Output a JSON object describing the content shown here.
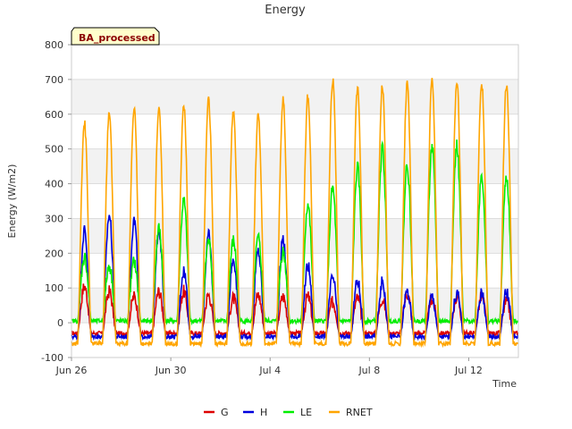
{
  "chart_data": {
    "type": "line",
    "title": "Energy",
    "xlabel": "Time",
    "ylabel": "Energy (W/m2)",
    "badge": "BA_processed",
    "ylim": [
      -100,
      800
    ],
    "yticks": [
      -100,
      0,
      100,
      200,
      300,
      400,
      500,
      600,
      700,
      800
    ],
    "xlim": [
      "2023-06-26",
      "2023-07-14"
    ],
    "xticks": [
      {
        "date": "2023-06-26",
        "label": "Jun 26"
      },
      {
        "date": "2023-06-30",
        "label": "Jun 30"
      },
      {
        "date": "2023-07-04",
        "label": "Jul 4"
      },
      {
        "date": "2023-07-08",
        "label": "Jul 8"
      },
      {
        "date": "2023-07-12",
        "label": "Jul 12"
      }
    ],
    "series_dates": [
      "2023-06-26",
      "2023-06-27",
      "2023-06-28",
      "2023-06-29",
      "2023-06-30",
      "2023-07-01",
      "2023-07-02",
      "2023-07-03",
      "2023-07-04",
      "2023-07-05",
      "2023-07-06",
      "2023-07-07",
      "2023-07-08",
      "2023-07-09",
      "2023-07-10",
      "2023-07-11",
      "2023-07-12",
      "2023-07-13"
    ],
    "grid": true,
    "legend_position": "bottom",
    "series": [
      {
        "name": "G",
        "color": "#dd0000",
        "night": -30,
        "daily_peak": [
          105,
          90,
          75,
          90,
          90,
          80,
          70,
          80,
          75,
          75,
          60,
          70,
          70,
          85,
          70,
          75,
          75,
          60
        ]
      },
      {
        "name": "H",
        "color": "#0000dd",
        "night": -40,
        "daily_peak": [
          265,
          310,
          295,
          270,
          150,
          250,
          185,
          205,
          240,
          165,
          130,
          120,
          115,
          90,
          75,
          85,
          85,
          90
        ]
      },
      {
        "name": "LE",
        "color": "#00ee00",
        "night": 5,
        "daily_peak": [
          190,
          165,
          175,
          270,
          350,
          235,
          235,
          240,
          205,
          340,
          385,
          445,
          500,
          455,
          505,
          510,
          425,
          420
        ]
      },
      {
        "name": "RNET",
        "color": "#ffa500",
        "night": -60,
        "daily_peak": [
          575,
          600,
          615,
          620,
          625,
          640,
          605,
          590,
          640,
          650,
          700,
          675,
          680,
          685,
          690,
          695,
          690,
          690
        ]
      }
    ]
  }
}
